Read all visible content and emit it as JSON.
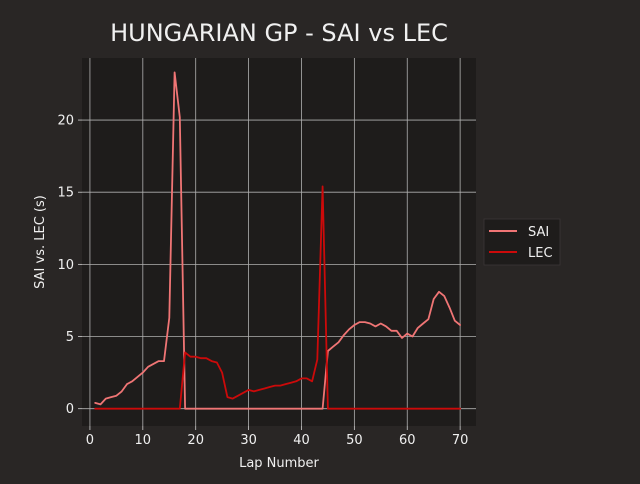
{
  "chart_data": {
    "type": "line",
    "title": "HUNGARIAN GP - SAI vs LEC",
    "xlabel": "Lap Number",
    "ylabel": "SAI vs. LEC (s)",
    "xlim": [
      -1.5,
      73
    ],
    "ylim": [
      -1.2,
      24.3
    ],
    "xticks": [
      0,
      10,
      20,
      30,
      40,
      50,
      60,
      70
    ],
    "yticks": [
      0,
      5,
      10,
      15,
      20
    ],
    "grid": true,
    "legend_position": "right",
    "series": [
      {
        "name": "SAI",
        "color": "#f07575",
        "x": [
          1,
          2,
          3,
          4,
          5,
          6,
          7,
          8,
          9,
          10,
          11,
          12,
          13,
          14,
          15,
          16,
          17,
          18,
          19,
          20,
          21,
          22,
          23,
          24,
          25,
          26,
          27,
          28,
          29,
          30,
          31,
          32,
          33,
          34,
          35,
          36,
          37,
          38,
          39,
          40,
          41,
          42,
          43,
          44,
          45,
          46,
          47,
          48,
          49,
          50,
          51,
          52,
          53,
          54,
          55,
          56,
          57,
          58,
          59,
          60,
          61,
          62,
          63,
          64,
          65,
          66,
          67,
          68,
          69,
          70
        ],
        "y": [
          0.4,
          0.3,
          0.7,
          0.8,
          0.9,
          1.2,
          1.7,
          1.9,
          2.2,
          2.5,
          2.9,
          3.1,
          3.3,
          3.3,
          6.3,
          23.3,
          20.2,
          0,
          0,
          0,
          0,
          0,
          0,
          0,
          0,
          0,
          0,
          0,
          0,
          0,
          0,
          0,
          0,
          0,
          0,
          0,
          0,
          0,
          0,
          0,
          0,
          0,
          0,
          0,
          4.0,
          4.3,
          4.6,
          5.1,
          5.5,
          5.8,
          6.0,
          6.0,
          5.9,
          5.7,
          5.9,
          5.7,
          5.4,
          5.4,
          4.9,
          5.2,
          5.0,
          5.6,
          5.9,
          6.2,
          7.6,
          8.1,
          7.8,
          7.0,
          6.1,
          5.8
        ]
      },
      {
        "name": "LEC",
        "color": "#cc0a0a",
        "x": [
          1,
          2,
          3,
          4,
          5,
          6,
          7,
          8,
          9,
          10,
          11,
          12,
          13,
          14,
          15,
          16,
          17,
          18,
          19,
          20,
          21,
          22,
          23,
          24,
          25,
          26,
          27,
          28,
          29,
          30,
          31,
          32,
          33,
          34,
          35,
          36,
          37,
          38,
          39,
          40,
          41,
          42,
          43,
          44,
          45,
          46,
          47,
          48,
          49,
          50,
          51,
          52,
          53,
          54,
          55,
          56,
          57,
          58,
          59,
          60,
          61,
          62,
          63,
          64,
          65,
          66,
          67,
          68,
          69,
          70
        ],
        "y": [
          0,
          0,
          0,
          0,
          0,
          0,
          0,
          0,
          0,
          0,
          0,
          0,
          0,
          0,
          0,
          0,
          0,
          3.9,
          3.6,
          3.6,
          3.5,
          3.5,
          3.3,
          3.2,
          2.5,
          0.8,
          0.7,
          0.9,
          1.1,
          1.3,
          1.2,
          1.3,
          1.4,
          1.5,
          1.6,
          1.6,
          1.7,
          1.8,
          1.9,
          2.1,
          2.1,
          1.9,
          3.4,
          15.4,
          0,
          0,
          0,
          0,
          0,
          0,
          0,
          0,
          0,
          0,
          0,
          0,
          0,
          0,
          0,
          0,
          0,
          0,
          0,
          0,
          0,
          0,
          0,
          0,
          0,
          0
        ]
      }
    ]
  }
}
